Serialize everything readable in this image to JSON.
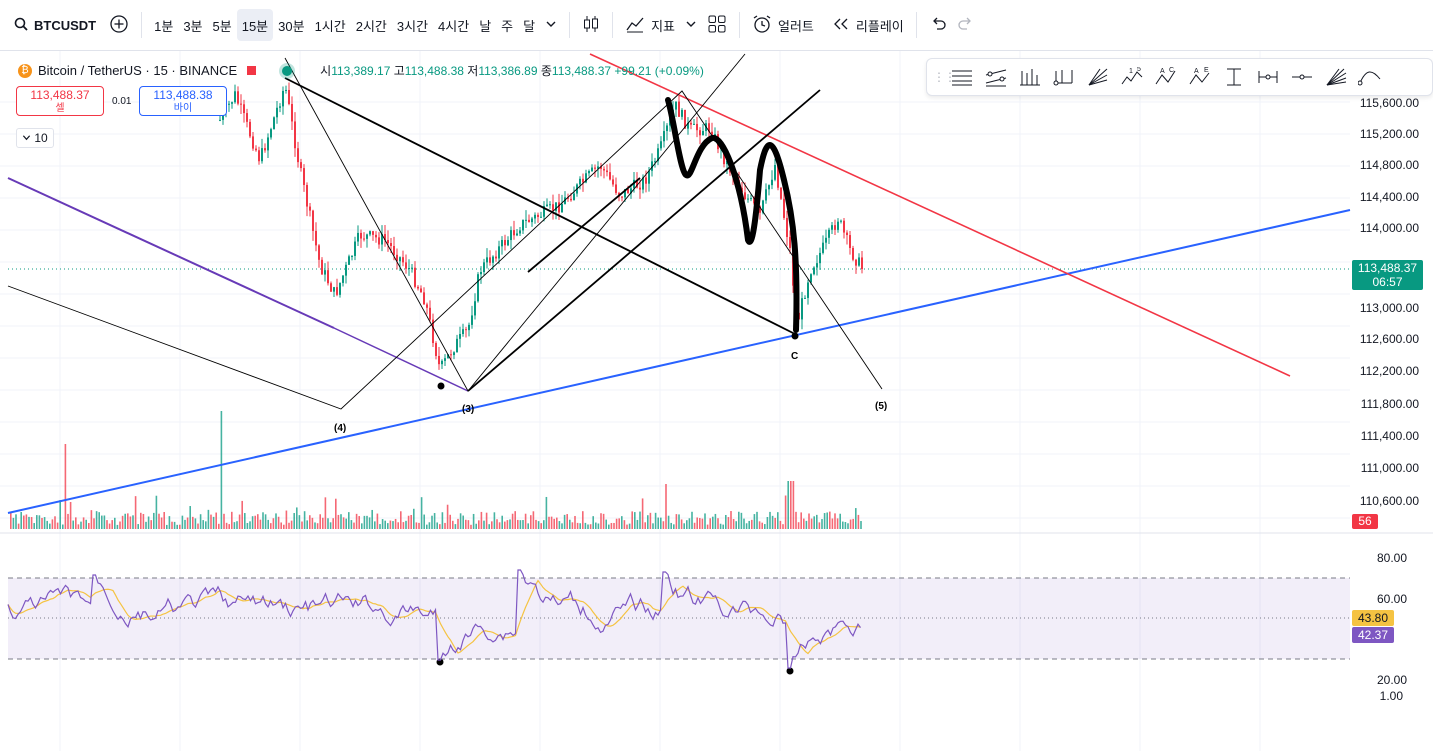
{
  "toolbar": {
    "symbol": "BTCUSDT",
    "intervals": [
      "1분",
      "3분",
      "5분",
      "15분",
      "30분",
      "1시간",
      "2시간",
      "3시간",
      "4시간",
      "날",
      "주",
      "달"
    ],
    "active_interval": "15분",
    "indicators_label": "지표",
    "alert_label": "얼러트",
    "replay_label": "리플레이"
  },
  "legend": {
    "title": "Bitcoin / TetherUS · 15 · BINANCE",
    "open_label": "시",
    "open": "113,389.17",
    "high_label": "고",
    "high": "113,488.38",
    "low_label": "저",
    "low": "113,386.89",
    "close_label": "종",
    "close": "113,488.37",
    "change": "+99.21 (+0.09%)"
  },
  "trade": {
    "sell_price": "113,488.37",
    "sell_label": "셀",
    "spread": "0.01",
    "buy_price": "113,488.38",
    "buy_label": "바이",
    "interval_value": "10"
  },
  "price_axis": {
    "ticks": [
      "115,600.00",
      "115,200.00",
      "114,800.00",
      "114,400.00",
      "114,000.00",
      "113,000.00",
      "112,600.00",
      "112,200.00",
      "111,800.00",
      "111,400.00",
      "111,000.00",
      "110,600.00"
    ],
    "current_price": "113,488.37",
    "countdown": "06:57",
    "volume_badge": "56"
  },
  "rsi_axis": {
    "ticks": [
      "80.00",
      "60.00",
      "20.00",
      "1.00"
    ],
    "rsi_ma": "43.80",
    "rsi": "42.37"
  },
  "annotations": {
    "wave4": "(4)",
    "wave3": "(3)",
    "waveC": "C",
    "wave5": "(5)"
  },
  "drawing_tools": [
    "horizontal-lines",
    "parallel-lines",
    "pitchfork",
    "trend-fan",
    "fib-fan",
    "elliott-1-5",
    "elliott-abc",
    "elliott-ae",
    "long-position",
    "measure",
    "horizontal-ray",
    "gann-fan",
    "curve"
  ],
  "colors": {
    "up": "#089981",
    "down": "#f23645",
    "blue_trend": "#2962ff",
    "purple_line": "#673ab7",
    "rsi_line": "#7e57c2",
    "rsi_ma": "#f5c342",
    "red_line": "#f23645"
  }
}
